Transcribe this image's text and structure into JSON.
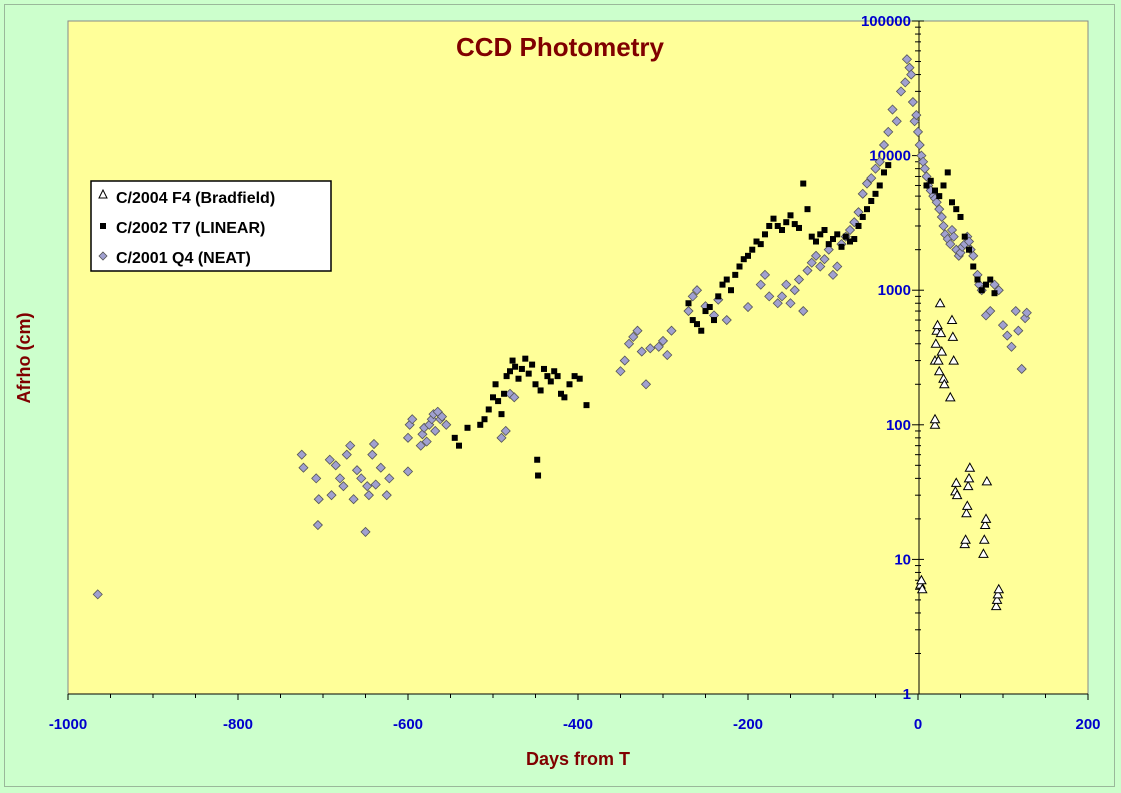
{
  "chart_data": {
    "type": "scatter",
    "title": "CCD Photometry",
    "xlabel": "Days from T",
    "ylabel": "Afrho (cm)",
    "xlim": [
      -1000,
      200
    ],
    "ylim": [
      1,
      100000
    ],
    "yscale": "log",
    "x_ticks": [
      "-1000",
      "-800",
      "-600",
      "-400",
      "-200",
      "0",
      "200"
    ],
    "y_ticks": [
      "1",
      "10",
      "100",
      "1000",
      "10000",
      "100000"
    ],
    "legend_position": "left",
    "colors": {
      "plot_bg": "#ffff99",
      "page_bg": "#ccffcc",
      "title": "#800000",
      "ticks": "#0000cc",
      "neat": "#a0a0d0"
    },
    "series": [
      {
        "name": "C/2004 F4 (Bradfield)",
        "marker": "open-triangle",
        "points": [
          [
            3,
            6.5
          ],
          [
            4,
            7
          ],
          [
            5,
            6
          ],
          [
            20,
            100
          ],
          [
            20,
            110
          ],
          [
            20,
            300
          ],
          [
            21,
            400
          ],
          [
            22,
            500
          ],
          [
            23,
            550
          ],
          [
            24,
            300
          ],
          [
            25,
            250
          ],
          [
            26,
            800
          ],
          [
            27,
            480
          ],
          [
            28,
            350
          ],
          [
            30,
            220
          ],
          [
            31,
            200
          ],
          [
            38,
            160
          ],
          [
            40,
            600
          ],
          [
            41,
            450
          ],
          [
            42,
            300
          ],
          [
            44,
            32
          ],
          [
            45,
            37
          ],
          [
            46,
            30
          ],
          [
            55,
            13
          ],
          [
            56,
            14
          ],
          [
            57,
            22
          ],
          [
            58,
            25
          ],
          [
            59,
            35
          ],
          [
            60,
            40
          ],
          [
            61,
            48
          ],
          [
            77,
            11
          ],
          [
            78,
            14
          ],
          [
            79,
            18
          ],
          [
            80,
            20
          ],
          [
            81,
            38
          ],
          [
            92,
            4.5
          ],
          [
            93,
            5
          ],
          [
            94,
            5.5
          ],
          [
            95,
            6
          ]
        ]
      },
      {
        "name": "C/2002 T7 (LINEAR)",
        "marker": "filled-square",
        "points": [
          [
            -545,
            80
          ],
          [
            -540,
            70
          ],
          [
            -530,
            95
          ],
          [
            -515,
            100
          ],
          [
            -510,
            110
          ],
          [
            -505,
            130
          ],
          [
            -500,
            160
          ],
          [
            -497,
            200
          ],
          [
            -494,
            150
          ],
          [
            -490,
            120
          ],
          [
            -487,
            170
          ],
          [
            -484,
            230
          ],
          [
            -480,
            250
          ],
          [
            -477,
            300
          ],
          [
            -474,
            270
          ],
          [
            -470,
            220
          ],
          [
            -466,
            260
          ],
          [
            -462,
            310
          ],
          [
            -458,
            240
          ],
          [
            -454,
            280
          ],
          [
            -450,
            200
          ],
          [
            -448,
            55
          ],
          [
            -447,
            42
          ],
          [
            -444,
            180
          ],
          [
            -440,
            260
          ],
          [
            -436,
            230
          ],
          [
            -432,
            210
          ],
          [
            -428,
            250
          ],
          [
            -424,
            230
          ],
          [
            -420,
            170
          ],
          [
            -416,
            160
          ],
          [
            -410,
            200
          ],
          [
            -404,
            230
          ],
          [
            -398,
            220
          ],
          [
            -390,
            140
          ],
          [
            -270,
            800
          ],
          [
            -265,
            600
          ],
          [
            -260,
            560
          ],
          [
            -255,
            500
          ],
          [
            -250,
            700
          ],
          [
            -245,
            750
          ],
          [
            -240,
            600
          ],
          [
            -235,
            900
          ],
          [
            -230,
            1100
          ],
          [
            -225,
            1200
          ],
          [
            -220,
            1000
          ],
          [
            -215,
            1300
          ],
          [
            -210,
            1500
          ],
          [
            -205,
            1700
          ],
          [
            -200,
            1800
          ],
          [
            -195,
            2000
          ],
          [
            -190,
            2300
          ],
          [
            -185,
            2200
          ],
          [
            -180,
            2600
          ],
          [
            -175,
            3000
          ],
          [
            -170,
            3400
          ],
          [
            -165,
            3000
          ],
          [
            -160,
            2800
          ],
          [
            -155,
            3200
          ],
          [
            -150,
            3600
          ],
          [
            -145,
            3100
          ],
          [
            -140,
            2900
          ],
          [
            -135,
            6200
          ],
          [
            -130,
            4000
          ],
          [
            -125,
            2500
          ],
          [
            -120,
            2300
          ],
          [
            -115,
            2600
          ],
          [
            -110,
            2800
          ],
          [
            -105,
            2200
          ],
          [
            -100,
            2400
          ],
          [
            -95,
            2600
          ],
          [
            -90,
            2100
          ],
          [
            -85,
            2500
          ],
          [
            -80,
            2300
          ],
          [
            -75,
            2400
          ],
          [
            -70,
            3000
          ],
          [
            -65,
            3500
          ],
          [
            -60,
            4000
          ],
          [
            -55,
            4600
          ],
          [
            -50,
            5200
          ],
          [
            -45,
            6000
          ],
          [
            -40,
            7500
          ],
          [
            -35,
            8500
          ],
          [
            10,
            6000
          ],
          [
            15,
            6500
          ],
          [
            20,
            5500
          ],
          [
            25,
            5000
          ],
          [
            30,
            6000
          ],
          [
            35,
            7500
          ],
          [
            40,
            4500
          ],
          [
            45,
            4000
          ],
          [
            50,
            3500
          ],
          [
            55,
            2500
          ],
          [
            60,
            2000
          ],
          [
            65,
            1500
          ],
          [
            70,
            1200
          ],
          [
            75,
            1000
          ],
          [
            80,
            1100
          ],
          [
            85,
            1200
          ],
          [
            90,
            950
          ]
        ]
      },
      {
        "name": "C/2001 Q4 (NEAT)",
        "marker": "gray-diamond",
        "points": [
          [
            -965,
            5.5
          ],
          [
            -725,
            60
          ],
          [
            -723,
            48
          ],
          [
            -708,
            40
          ],
          [
            -706,
            18
          ],
          [
            -705,
            28
          ],
          [
            -692,
            55
          ],
          [
            -690,
            30
          ],
          [
            -685,
            50
          ],
          [
            -680,
            40
          ],
          [
            -676,
            35
          ],
          [
            -672,
            60
          ],
          [
            -668,
            70
          ],
          [
            -664,
            28
          ],
          [
            -660,
            46
          ],
          [
            -655,
            40
          ],
          [
            -650,
            16
          ],
          [
            -648,
            35
          ],
          [
            -646,
            30
          ],
          [
            -642,
            60
          ],
          [
            -640,
            72
          ],
          [
            -638,
            36
          ],
          [
            -632,
            48
          ],
          [
            -625,
            30
          ],
          [
            -622,
            40
          ],
          [
            -600,
            45
          ],
          [
            -600,
            80
          ],
          [
            -598,
            100
          ],
          [
            -595,
            110
          ],
          [
            -585,
            70
          ],
          [
            -583,
            85
          ],
          [
            -581,
            95
          ],
          [
            -578,
            75
          ],
          [
            -575,
            100
          ],
          [
            -572,
            110
          ],
          [
            -570,
            120
          ],
          [
            -568,
            90
          ],
          [
            -565,
            125
          ],
          [
            -562,
            110
          ],
          [
            -560,
            115
          ],
          [
            -555,
            100
          ],
          [
            -490,
            80
          ],
          [
            -485,
            90
          ],
          [
            -480,
            170
          ],
          [
            -475,
            160
          ],
          [
            -350,
            250
          ],
          [
            -345,
            300
          ],
          [
            -340,
            400
          ],
          [
            -335,
            450
          ],
          [
            -330,
            500
          ],
          [
            -325,
            350
          ],
          [
            -320,
            200
          ],
          [
            -315,
            370
          ],
          [
            -305,
            380
          ],
          [
            -300,
            420
          ],
          [
            -295,
            330
          ],
          [
            -290,
            500
          ],
          [
            -270,
            700
          ],
          [
            -265,
            900
          ],
          [
            -260,
            1000
          ],
          [
            -250,
            760
          ],
          [
            -240,
            650
          ],
          [
            -235,
            850
          ],
          [
            -225,
            600
          ],
          [
            -200,
            750
          ],
          [
            -185,
            1100
          ],
          [
            -180,
            1300
          ],
          [
            -175,
            900
          ],
          [
            -165,
            800
          ],
          [
            -160,
            900
          ],
          [
            -155,
            1100
          ],
          [
            -150,
            800
          ],
          [
            -145,
            1000
          ],
          [
            -140,
            1200
          ],
          [
            -135,
            700
          ],
          [
            -130,
            1400
          ],
          [
            -125,
            1600
          ],
          [
            -120,
            1800
          ],
          [
            -115,
            1500
          ],
          [
            -110,
            1700
          ],
          [
            -105,
            2000
          ],
          [
            -100,
            1300
          ],
          [
            -95,
            1500
          ],
          [
            -90,
            2200
          ],
          [
            -85,
            2500
          ],
          [
            -80,
            2800
          ],
          [
            -75,
            3200
          ],
          [
            -70,
            3800
          ],
          [
            -65,
            5200
          ],
          [
            -60,
            6200
          ],
          [
            -55,
            6800
          ],
          [
            -50,
            8000
          ],
          [
            -45,
            9000
          ],
          [
            -40,
            12000
          ],
          [
            -35,
            15000
          ],
          [
            -30,
            22000
          ],
          [
            -25,
            18000
          ],
          [
            -20,
            30000
          ],
          [
            -15,
            35000
          ],
          [
            -13,
            52000
          ],
          [
            -10,
            45000
          ],
          [
            -8,
            40000
          ],
          [
            -6,
            25000
          ],
          [
            -4,
            18000
          ],
          [
            -2,
            20000
          ],
          [
            0,
            15000
          ],
          [
            2,
            12000
          ],
          [
            4,
            10000
          ],
          [
            6,
            9000
          ],
          [
            8,
            8000
          ],
          [
            10,
            7000
          ],
          [
            12,
            6000
          ],
          [
            15,
            5500
          ],
          [
            18,
            5000
          ],
          [
            20,
            4800
          ],
          [
            22,
            4500
          ],
          [
            25,
            4000
          ],
          [
            28,
            3500
          ],
          [
            30,
            3000
          ],
          [
            32,
            2600
          ],
          [
            35,
            2400
          ],
          [
            38,
            2200
          ],
          [
            40,
            2800
          ],
          [
            42,
            2500
          ],
          [
            45,
            2000
          ],
          [
            48,
            1800
          ],
          [
            50,
            1900
          ],
          [
            52,
            2100
          ],
          [
            55,
            2200
          ],
          [
            58,
            2500
          ],
          [
            60,
            2300
          ],
          [
            62,
            2000
          ],
          [
            65,
            1800
          ],
          [
            70,
            1300
          ],
          [
            72,
            1100
          ],
          [
            75,
            1000
          ],
          [
            80,
            650
          ],
          [
            85,
            700
          ],
          [
            90,
            1100
          ],
          [
            95,
            1000
          ],
          [
            100,
            550
          ],
          [
            105,
            460
          ],
          [
            110,
            380
          ],
          [
            115,
            700
          ],
          [
            118,
            500
          ],
          [
            122,
            260
          ],
          [
            126,
            620
          ],
          [
            128,
            680
          ]
        ]
      }
    ]
  }
}
